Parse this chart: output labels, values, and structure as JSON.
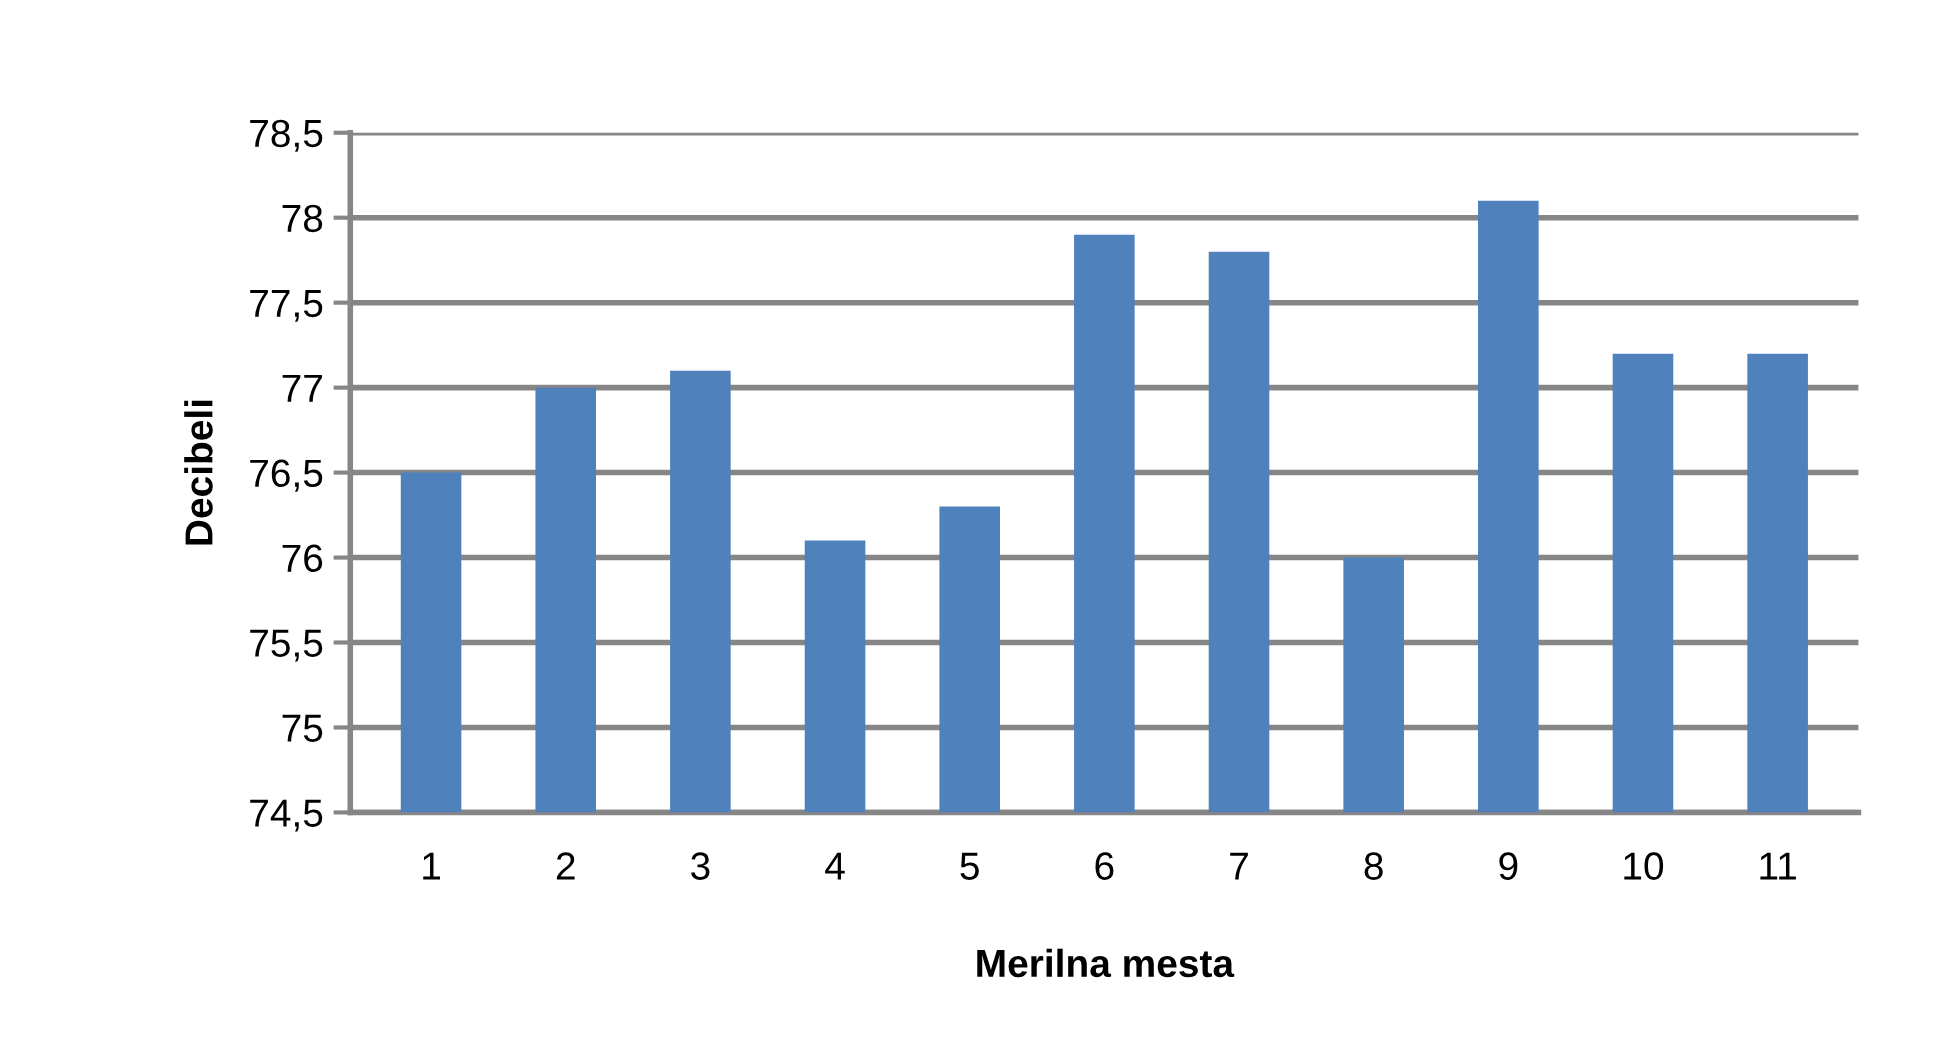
{
  "chart_data": {
    "type": "bar",
    "xlabel": "Merilna mesta",
    "ylabel": "Decibeli",
    "categories": [
      "1",
      "2",
      "3",
      "4",
      "5",
      "6",
      "7",
      "8",
      "9",
      "10",
      "11"
    ],
    "values": [
      76.5,
      77.0,
      77.1,
      76.1,
      76.3,
      77.9,
      77.8,
      76.0,
      78.1,
      77.2,
      77.2
    ],
    "color": "#4f81bd",
    "ylim": [
      74.5,
      78.5
    ],
    "yticks": [
      {
        "value": 74.5,
        "label": "74,5"
      },
      75,
      {
        "value": 75.5,
        "label": "75,5"
      },
      76,
      {
        "value": 76.5,
        "label": "76,5"
      },
      77,
      {
        "value": 77.5,
        "label": "77,5"
      },
      78,
      {
        "value": 78.5,
        "label": "78,5"
      }
    ],
    "grid": "y"
  }
}
